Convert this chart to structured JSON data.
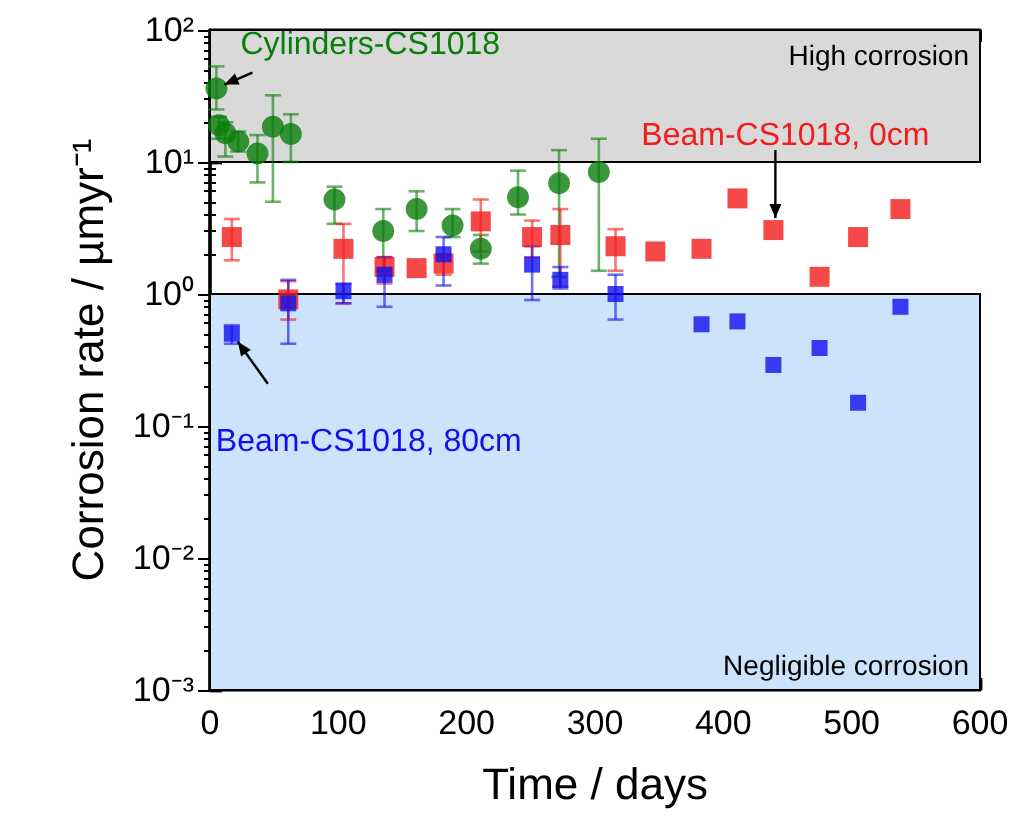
{
  "chart_data": {
    "type": "scatter",
    "xlabel": "Time / days",
    "ylabel": "Corrosion rate / µmyr⁻¹",
    "xlim": [
      0,
      600
    ],
    "xticks": [
      0,
      100,
      200,
      300,
      400,
      500,
      600
    ],
    "ylim": [
      0.001,
      100
    ],
    "yticks": [
      {
        "value": 0.001,
        "label": "10⁻³"
      },
      {
        "value": 0.01,
        "label": "10⁻²"
      },
      {
        "value": 0.1,
        "label": "10⁻¹"
      },
      {
        "value": 1,
        "label": "10⁰"
      },
      {
        "value": 10,
        "label": "10¹"
      },
      {
        "value": 100,
        "label": "10²"
      }
    ],
    "log": "y",
    "grid": false,
    "legend": false,
    "bands": [
      {
        "axis": "y",
        "from": 10,
        "to": 100,
        "label": "High corrosion",
        "color": "#d9d9d9"
      },
      {
        "axis": "y",
        "from": 0.001,
        "to": 1,
        "label": "Negligible corrosion",
        "color": "#cce3fb"
      }
    ],
    "series": [
      {
        "name": "Cylinders-CS1018",
        "color": "#0a7d0a",
        "marker": "circle",
        "x": [
          5,
          7,
          12,
          22,
          37,
          49,
          63,
          97,
          135,
          161,
          189,
          211,
          240,
          272,
          303
        ],
        "values": [
          36,
          19,
          16.5,
          14.3,
          11.6,
          18.5,
          16.3,
          5.2,
          3.0,
          4.4,
          3.3,
          2.2,
          5.4,
          6.9,
          8.4
        ],
        "errors": [
          [
            25,
            53
          ],
          [
            15,
            22
          ],
          [
            11,
            20
          ],
          [
            12,
            17
          ],
          [
            7,
            16
          ],
          [
            5,
            32
          ],
          [
            10,
            23
          ],
          [
            3.4,
            6.5
          ],
          [
            1.5,
            4.4
          ],
          [
            3,
            6
          ],
          [
            2.7,
            4.4
          ],
          [
            1.7,
            2.8
          ],
          [
            4.0,
            8.6
          ],
          [
            1.35,
            12.3
          ],
          [
            1.5,
            15
          ]
        ]
      },
      {
        "name": "Beam-CS1018, 0cm",
        "color": "#f21c1c",
        "marker": "square",
        "x": [
          17,
          61,
          104,
          136,
          161,
          182,
          211,
          251,
          273,
          316,
          347,
          383,
          411,
          439,
          475,
          505,
          538
        ],
        "values": [
          2.7,
          0.91,
          2.2,
          1.6,
          1.57,
          1.7,
          3.55,
          2.7,
          2.8,
          2.3,
          2.1,
          2.2,
          5.3,
          3.05,
          1.35,
          2.7,
          4.4
        ],
        "errors": [
          [
            1.8,
            3.7
          ],
          [
            0.64,
            1.25
          ],
          [
            0.85,
            3.4
          ],
          [
            1.2,
            1.9
          ],
          null,
          [
            1.4,
            2.0
          ],
          [
            2.1,
            5.2
          ],
          [
            1.9,
            3.6
          ],
          [
            1.14,
            4.4
          ],
          [
            1.5,
            3.1
          ],
          null,
          null,
          null,
          null,
          null,
          null,
          null
        ]
      },
      {
        "name": "Beam-CS1018, 80cm",
        "color": "#1010f0",
        "marker": "square",
        "x": [
          17,
          61,
          104,
          136,
          182,
          251,
          273,
          316,
          383,
          411,
          439,
          475,
          505,
          538
        ],
        "values": [
          0.5,
          0.85,
          1.05,
          1.4,
          2.0,
          1.67,
          1.28,
          1.0,
          0.59,
          0.62,
          0.29,
          0.39,
          0.15,
          0.8
        ],
        "errors": [
          [
            0.42,
            0.58
          ],
          [
            0.42,
            1.28
          ],
          [
            0.85,
            1.2
          ],
          [
            0.8,
            1.9
          ],
          [
            1.16,
            2.7
          ],
          [
            0.9,
            2.3
          ],
          [
            1.1,
            1.6
          ],
          [
            0.64,
            1.4
          ],
          null,
          null,
          null,
          null,
          null,
          null
        ]
      }
    ]
  }
}
